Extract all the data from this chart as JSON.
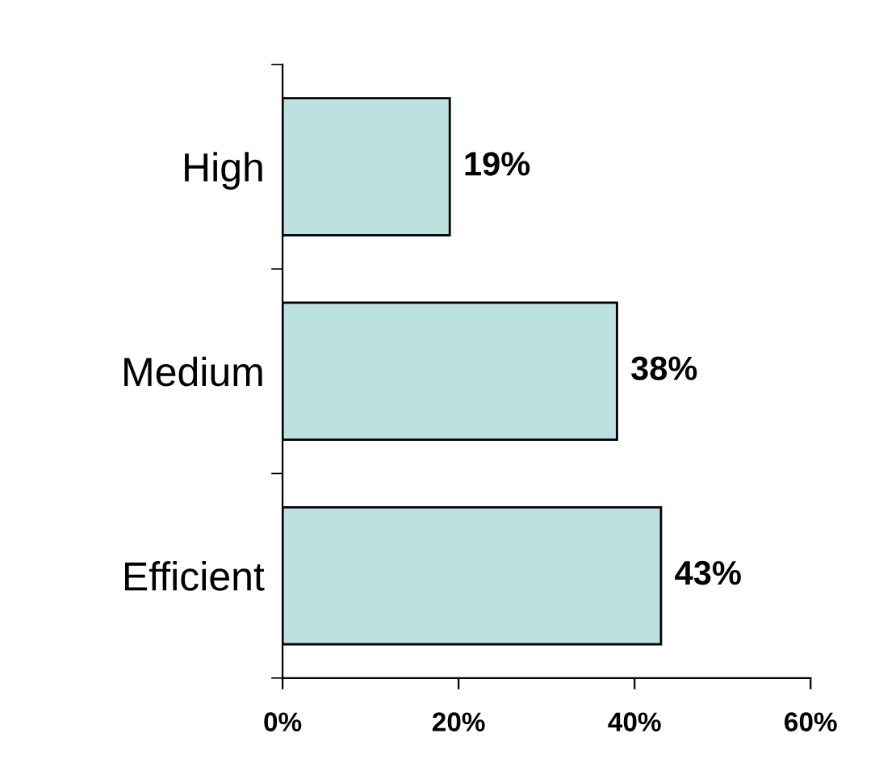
{
  "chart_data": {
    "type": "bar",
    "orientation": "horizontal",
    "categories": [
      "High",
      "Medium",
      "Efficient"
    ],
    "values": [
      19,
      38,
      43
    ],
    "value_labels": [
      "19%",
      "38%",
      "43%"
    ],
    "color": "#bde0e0",
    "xlim": [
      0,
      60
    ],
    "xticks": [
      {
        "value": 0,
        "label": "0%"
      },
      {
        "value": 20,
        "label": "20%"
      },
      {
        "value": 40,
        "label": "40%"
      },
      {
        "value": 60,
        "label": "60%"
      }
    ],
    "grid": false,
    "legend": false
  }
}
